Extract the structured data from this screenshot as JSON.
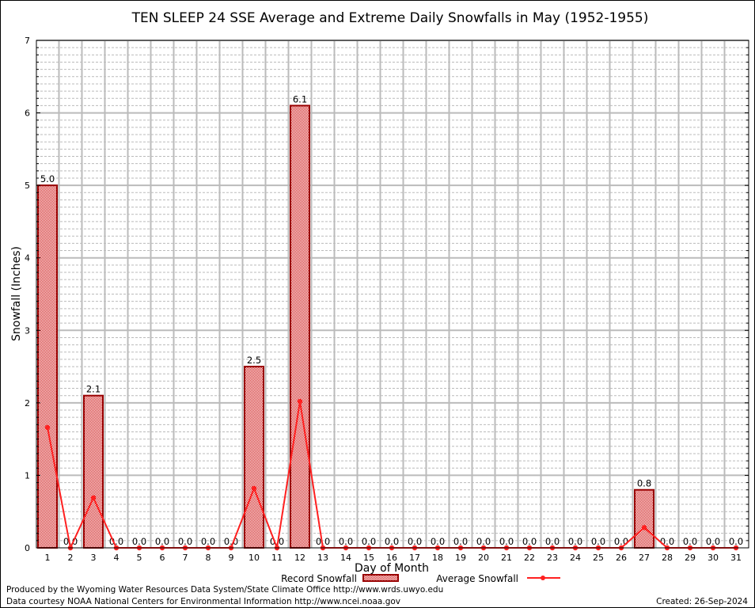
{
  "chart_data": {
    "type": "bar",
    "title": "TEN SLEEP 24 SSE Average and Extreme Daily Snowfalls in May (1952-1955)",
    "xlabel": "Day of Month",
    "ylabel": "Snowfall (Inches)",
    "ylim": [
      0,
      7
    ],
    "yticks": [
      "0",
      "1",
      "2",
      "3",
      "4",
      "5",
      "6",
      "7"
    ],
    "categories": [
      "1",
      "2",
      "3",
      "4",
      "5",
      "6",
      "7",
      "8",
      "9",
      "10",
      "11",
      "12",
      "13",
      "14",
      "15",
      "16",
      "17",
      "18",
      "19",
      "20",
      "21",
      "22",
      "23",
      "24",
      "25",
      "26",
      "27",
      "28",
      "29",
      "30",
      "31"
    ],
    "series": [
      {
        "name": "Record Snowfall",
        "type": "bar",
        "color": "#990000",
        "values": [
          5.0,
          0,
          2.1,
          0,
          0,
          0,
          0,
          0,
          0,
          2.5,
          0,
          6.1,
          0,
          0,
          0,
          0,
          0,
          0,
          0,
          0,
          0,
          0,
          0,
          0,
          0,
          0,
          0.8,
          0,
          0,
          0,
          0
        ],
        "labels": [
          "5.0",
          "0.0",
          "2.1",
          "0.0",
          "0.0",
          "0.0",
          "0.0",
          "0.0",
          "0.0",
          "2.5",
          "0.0",
          "6.1",
          "0.0",
          "0.0",
          "0.0",
          "0.0",
          "0.0",
          "0.0",
          "0.0",
          "0.0",
          "0.0",
          "0.0",
          "0.0",
          "0.0",
          "0.0",
          "0.0",
          "0.8",
          "0.0",
          "0.0",
          "0.0",
          "0.0"
        ]
      },
      {
        "name": "Average Snowfall",
        "type": "line",
        "color": "#ff2020",
        "values": [
          1.66,
          0,
          0.69,
          0,
          0,
          0,
          0,
          0,
          0,
          0.82,
          0,
          2.02,
          0,
          0,
          0,
          0,
          0,
          0,
          0,
          0,
          0,
          0,
          0,
          0,
          0,
          0,
          0.28,
          0,
          0,
          0,
          0
        ]
      }
    ],
    "grid": true,
    "legend": "bottom"
  },
  "footer": {
    "produced": "Produced by the Wyoming Water Resources Data System/State Climate Office http://www.wrds.uwyo.edu",
    "courtesy": "Data courtesy NOAA National Centers for Environmental Information http://www.ncei.noaa.gov",
    "created": "Created: 26-Sep-2024"
  }
}
